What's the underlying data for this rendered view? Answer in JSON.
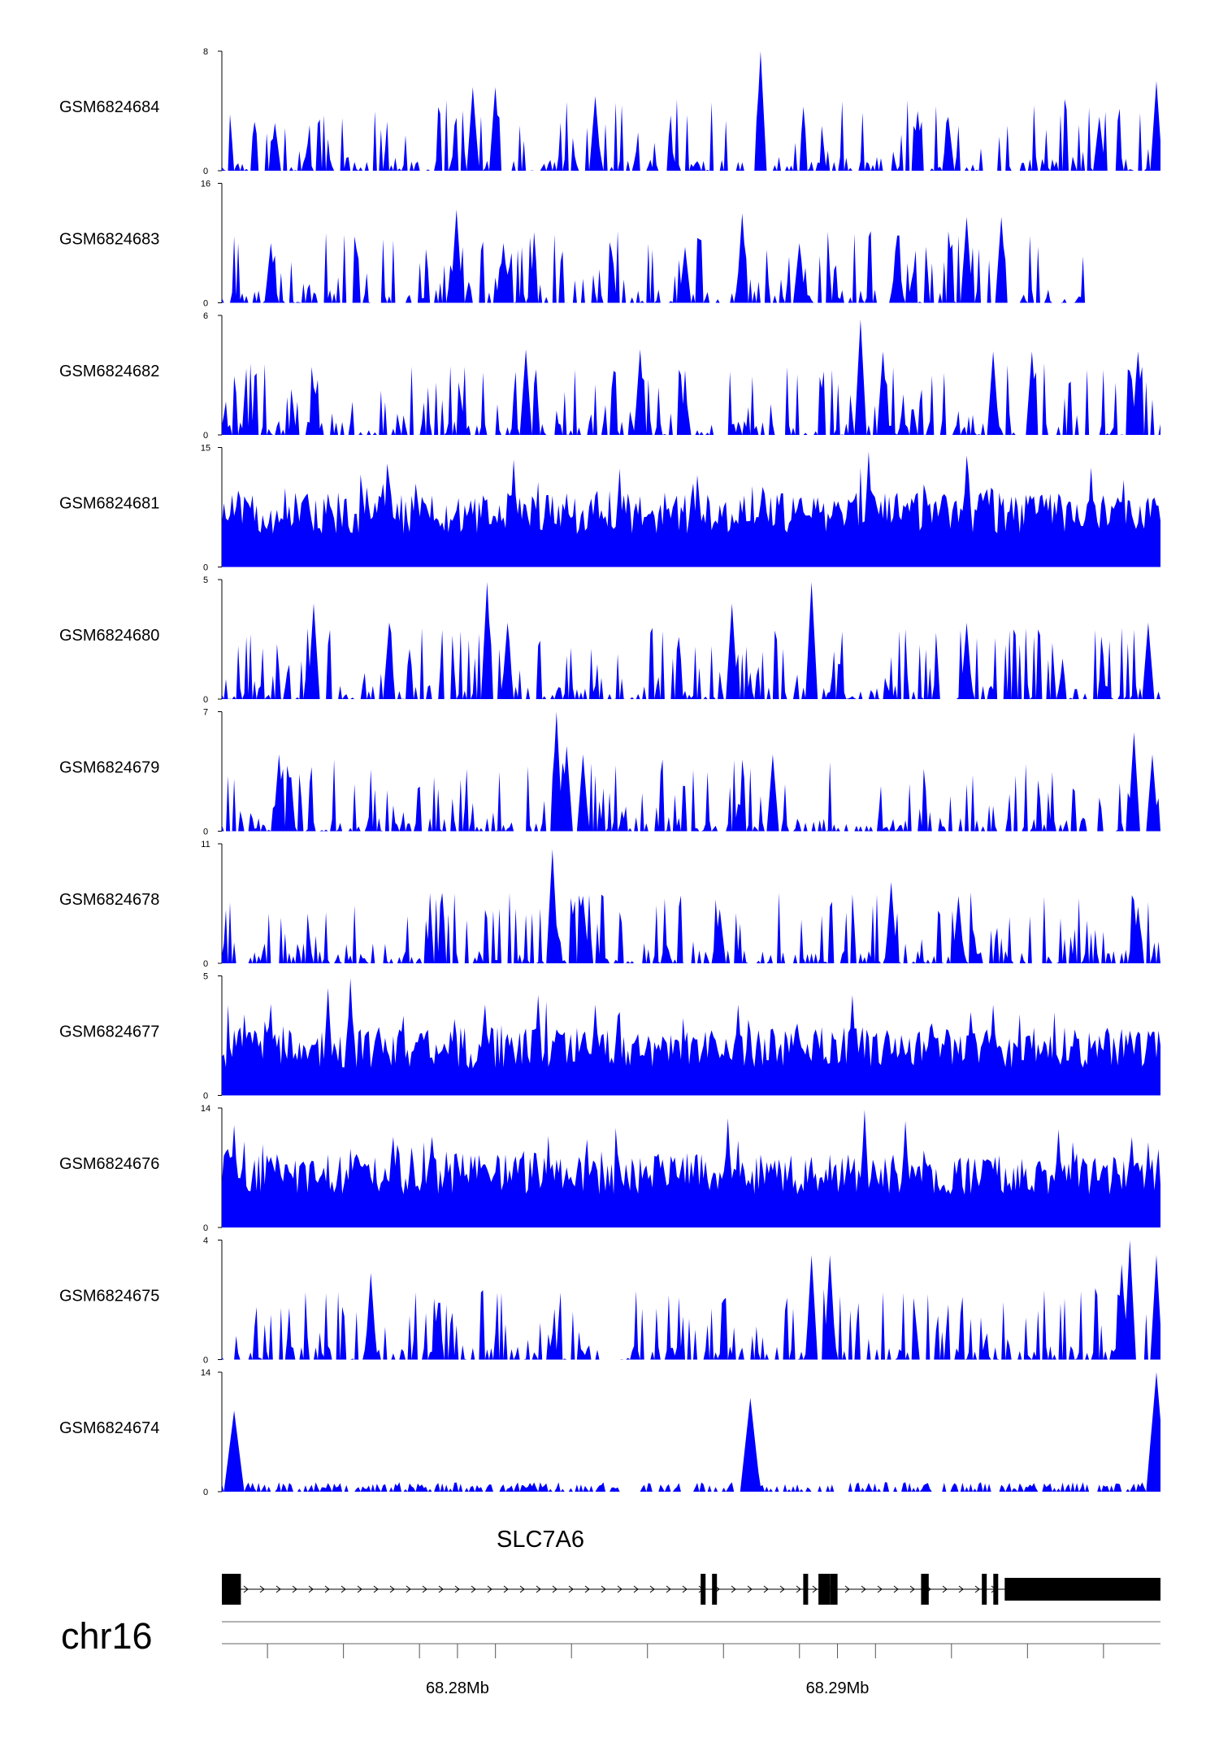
{
  "chart_data": {
    "type": "area",
    "title": "",
    "chromosome": "chr16",
    "x_unit": "Mb",
    "xlim": [
      68.2738,
      68.2985
    ],
    "x_ticks": [
      68.275,
      68.277,
      68.279,
      68.281,
      68.283,
      68.285,
      68.287,
      68.289,
      68.291,
      68.293,
      68.295,
      68.297
    ],
    "x_tick_labels": [
      {
        "value": 68.28,
        "label": "68.28Mb"
      },
      {
        "value": 68.29,
        "label": "68.29Mb"
      }
    ],
    "fill_color": "#0000ff",
    "series": [
      {
        "name": "GSM6824684",
        "ymax": 8,
        "ymax_label": "8",
        "ymin_label": "0",
        "seed": 11,
        "style": "sparse",
        "peaks": [
          [
            68.2752,
            3.2
          ],
          [
            68.2804,
            5.6
          ],
          [
            68.281,
            5.6
          ],
          [
            68.2836,
            5.0
          ],
          [
            68.288,
            8.0
          ],
          [
            68.2921,
            4.0
          ],
          [
            68.2929,
            3.6
          ],
          [
            68.2969,
            3.6
          ],
          [
            68.2984,
            6.0
          ]
        ]
      },
      {
        "name": "GSM6824683",
        "ymax": 16,
        "ymax_label": "16",
        "ymin_label": "0",
        "seed": 23,
        "style": "gapped",
        "end_x": 68.2965,
        "peaks": [
          [
            68.2751,
            8.0
          ],
          [
            68.28,
            12.5
          ],
          [
            68.2812,
            8.0
          ],
          [
            68.286,
            7.5
          ],
          [
            68.2875,
            12.0
          ],
          [
            68.289,
            8.0
          ],
          [
            68.2916,
            9.0
          ],
          [
            68.2934,
            11.5
          ],
          [
            68.2943,
            11.5
          ]
        ]
      },
      {
        "name": "GSM6824682",
        "ymax": 6,
        "ymax_label": "6",
        "ymin_label": "0",
        "seed": 37,
        "style": "sparse",
        "peaks": [
          [
            68.2818,
            4.3
          ],
          [
            68.2848,
            4.3
          ],
          [
            68.286,
            2.3
          ],
          [
            68.2906,
            5.8
          ],
          [
            68.2912,
            4.2
          ],
          [
            68.2941,
            4.2
          ],
          [
            68.2951,
            4.2
          ],
          [
            68.2979,
            4.2
          ]
        ]
      },
      {
        "name": "GSM6824681",
        "ymax": 15,
        "ymax_label": "15",
        "ymin_label": "0",
        "seed": 51,
        "style": "dense",
        "peaks": [
          [
            68.2776,
            10.0
          ],
          [
            68.2789,
            10.5
          ],
          [
            68.2815,
            13.5
          ],
          [
            68.2862,
            10.5
          ],
          [
            68.2908,
            14.5
          ],
          [
            68.2934,
            14.0
          ],
          [
            68.2967,
            12.5
          ]
        ]
      },
      {
        "name": "GSM6824680",
        "ymax": 5,
        "ymax_label": "5",
        "ymin_label": "0",
        "seed": 67,
        "style": "sparse",
        "peaks": [
          [
            68.2762,
            4.0
          ],
          [
            68.2782,
            3.2
          ],
          [
            68.2808,
            4.9
          ],
          [
            68.2813,
            3.2
          ],
          [
            68.2872,
            4.0
          ],
          [
            68.2893,
            4.9
          ],
          [
            68.2934,
            3.2
          ],
          [
            68.2982,
            3.2
          ]
        ]
      },
      {
        "name": "GSM6824679",
        "ymax": 7,
        "ymax_label": "7",
        "ymin_label": "0",
        "seed": 79,
        "style": "sparse",
        "peaks": [
          [
            68.2753,
            4.5
          ],
          [
            68.2826,
            7.0
          ],
          [
            68.2829,
            5.0
          ],
          [
            68.2833,
            4.5
          ],
          [
            68.2883,
            4.5
          ],
          [
            68.2978,
            5.8
          ],
          [
            68.2983,
            4.5
          ]
        ]
      },
      {
        "name": "GSM6824678",
        "ymax": 11,
        "ymax_label": "11",
        "ymin_label": "0",
        "seed": 91,
        "style": "sparse",
        "peaks": [
          [
            68.2825,
            10.5
          ],
          [
            68.2833,
            6.2
          ],
          [
            68.2869,
            5.0
          ],
          [
            68.2914,
            7.5
          ],
          [
            68.2932,
            6.2
          ],
          [
            68.2979,
            5.2
          ]
        ]
      },
      {
        "name": "GSM6824677",
        "ymax": 5,
        "ymax_label": "5",
        "ymin_label": "0",
        "seed": 103,
        "style": "busy",
        "peaks": [
          [
            68.2766,
            4.5
          ],
          [
            68.2772,
            4.9
          ],
          [
            68.2807,
            3.8
          ],
          [
            68.2821,
            4.2
          ],
          [
            68.2836,
            3.8
          ],
          [
            68.2874,
            3.8
          ],
          [
            68.2904,
            4.2
          ],
          [
            68.2941,
            3.8
          ]
        ]
      },
      {
        "name": "GSM6824676",
        "ymax": 14,
        "ymax_label": "14",
        "ymin_label": "0",
        "seed": 117,
        "style": "dense",
        "peaks": [
          [
            68.2741,
            12.0
          ],
          [
            68.2871,
            12.8
          ],
          [
            68.2907,
            13.8
          ],
          [
            68.2918,
            12.5
          ],
          [
            68.2958,
            11.5
          ],
          [
            68.2982,
            10.0
          ]
        ]
      },
      {
        "name": "GSM6824675",
        "ymax": 4,
        "ymax_label": "4",
        "ymin_label": "0",
        "seed": 131,
        "style": "sparse",
        "peaks": [
          [
            68.2777,
            2.9
          ],
          [
            68.2795,
            1.9
          ],
          [
            68.2893,
            3.5
          ],
          [
            68.2898,
            3.5
          ],
          [
            68.2975,
            3.2
          ],
          [
            68.2977,
            4.0
          ],
          [
            68.2984,
            3.5
          ]
        ]
      },
      {
        "name": "GSM6824674",
        "ymax": 14,
        "ymax_label": "14",
        "ymin_label": "0",
        "seed": 149,
        "style": "flat",
        "peaks": [
          [
            68.2741,
            9.5
          ],
          [
            68.2877,
            11.0
          ],
          [
            68.2984,
            14.0
          ]
        ]
      }
    ],
    "gene": {
      "name": "SLC7A6",
      "strand": "+",
      "exons": [
        [
          68.2738,
          68.2743
        ],
        [
          68.2864,
          68.2865
        ],
        [
          68.2867,
          68.2868
        ],
        [
          68.2891,
          68.2892
        ],
        [
          68.2895,
          68.2898
        ],
        [
          68.2898,
          68.29
        ],
        [
          68.2922,
          68.2924
        ],
        [
          68.2938,
          68.2939
        ],
        [
          68.2941,
          68.2942
        ],
        [
          68.2944,
          68.2985
        ]
      ]
    }
  }
}
